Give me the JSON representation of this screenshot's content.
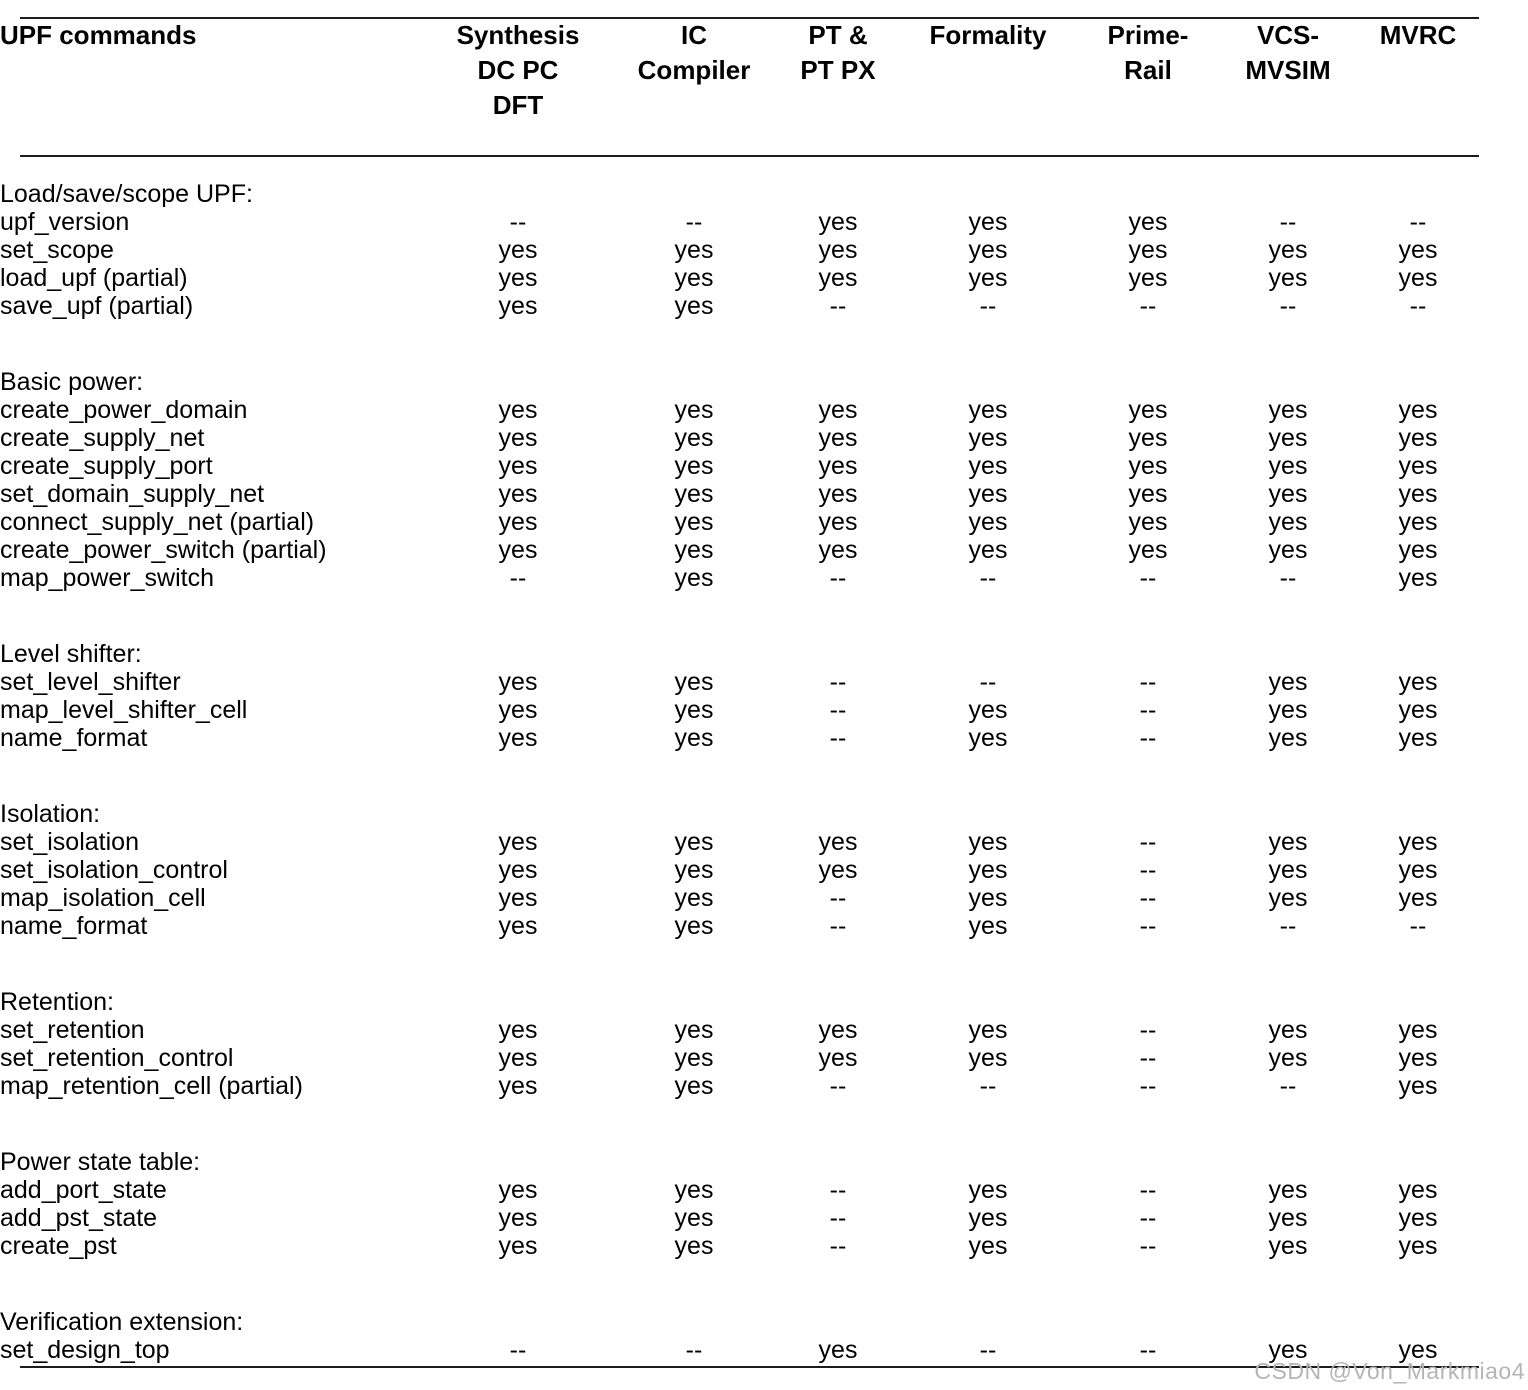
{
  "table": {
    "command_header": "UPF commands",
    "columns": [
      {
        "label_lines": [
          "Synthesis",
          "DC PC",
          "DFT"
        ]
      },
      {
        "label_lines": [
          "IC",
          "Compiler"
        ]
      },
      {
        "label_lines": [
          "PT &",
          "PT PX"
        ]
      },
      {
        "label_lines": [
          "Formality"
        ]
      },
      {
        "label_lines": [
          "Prime-",
          "Rail"
        ]
      },
      {
        "label_lines": [
          "VCS-",
          "MVSIM"
        ]
      },
      {
        "label_lines": [
          "MVRC"
        ]
      }
    ],
    "sections": [
      {
        "title": "Load/save/scope UPF:",
        "rows": [
          {
            "command": "upf_version",
            "values": [
              "--",
              "--",
              "yes",
              "yes",
              "yes",
              "--",
              "--"
            ]
          },
          {
            "command": "set_scope",
            "values": [
              "yes",
              "yes",
              "yes",
              "yes",
              "yes",
              "yes",
              "yes"
            ]
          },
          {
            "command": "load_upf (partial)",
            "values": [
              "yes",
              "yes",
              "yes",
              "yes",
              "yes",
              "yes",
              "yes"
            ]
          },
          {
            "command": "save_upf (partial)",
            "values": [
              "yes",
              "yes",
              "--",
              "--",
              "--",
              "--",
              "--"
            ]
          }
        ]
      },
      {
        "title": "Basic power:",
        "rows": [
          {
            "command": "create_power_domain",
            "values": [
              "yes",
              "yes",
              "yes",
              "yes",
              "yes",
              "yes",
              "yes"
            ]
          },
          {
            "command": "create_supply_net",
            "values": [
              "yes",
              "yes",
              "yes",
              "yes",
              "yes",
              "yes",
              "yes"
            ]
          },
          {
            "command": "create_supply_port",
            "values": [
              "yes",
              "yes",
              "yes",
              "yes",
              "yes",
              "yes",
              "yes"
            ]
          },
          {
            "command": "set_domain_supply_net",
            "values": [
              "yes",
              "yes",
              "yes",
              "yes",
              "yes",
              "yes",
              "yes"
            ]
          },
          {
            "command": "connect_supply_net (partial)",
            "values": [
              "yes",
              "yes",
              "yes",
              "yes",
              "yes",
              "yes",
              "yes"
            ]
          },
          {
            "command": "create_power_switch (partial)",
            "values": [
              "yes",
              "yes",
              "yes",
              "yes",
              "yes",
              "yes",
              "yes"
            ]
          },
          {
            "command": "map_power_switch",
            "values": [
              "--",
              "yes",
              "--",
              "--",
              "--",
              "--",
              "yes"
            ]
          }
        ]
      },
      {
        "title": "Level shifter:",
        "rows": [
          {
            "command": "set_level_shifter",
            "values": [
              "yes",
              "yes",
              "--",
              "--",
              "--",
              "yes",
              "yes"
            ]
          },
          {
            "command": "map_level_shifter_cell",
            "values": [
              "yes",
              "yes",
              "--",
              "yes",
              "--",
              "yes",
              "yes"
            ]
          },
          {
            "command": "name_format",
            "values": [
              "yes",
              "yes",
              "--",
              "yes",
              "--",
              "yes",
              "yes"
            ]
          }
        ]
      },
      {
        "title": "Isolation:",
        "rows": [
          {
            "command": "set_isolation",
            "values": [
              "yes",
              "yes",
              "yes",
              "yes",
              "--",
              "yes",
              "yes"
            ]
          },
          {
            "command": "set_isolation_control",
            "values": [
              "yes",
              "yes",
              "yes",
              "yes",
              "--",
              "yes",
              "yes"
            ]
          },
          {
            "command": "map_isolation_cell",
            "values": [
              "yes",
              "yes",
              "--",
              "yes",
              "--",
              "yes",
              "yes"
            ]
          },
          {
            "command": "name_format",
            "values": [
              "yes",
              "yes",
              "--",
              "yes",
              "--",
              "--",
              "--"
            ]
          }
        ]
      },
      {
        "title": "Retention:",
        "rows": [
          {
            "command": "set_retention",
            "values": [
              "yes",
              "yes",
              "yes",
              "yes",
              "--",
              "yes",
              "yes"
            ]
          },
          {
            "command": "set_retention_control",
            "values": [
              "yes",
              "yes",
              "yes",
              "yes",
              "--",
              "yes",
              "yes"
            ]
          },
          {
            "command": "map_retention_cell (partial)",
            "values": [
              "yes",
              "yes",
              "--",
              "--",
              "--",
              "--",
              "yes"
            ]
          }
        ]
      },
      {
        "title": "Power state table:",
        "rows": [
          {
            "command": "add_port_state",
            "values": [
              "yes",
              "yes",
              "--",
              "yes",
              "--",
              "yes",
              "yes"
            ]
          },
          {
            "command": "add_pst_state",
            "values": [
              "yes",
              "yes",
              "--",
              "yes",
              "--",
              "yes",
              "yes"
            ],
            "emphasis": true
          },
          {
            "command": "create_pst",
            "values": [
              "yes",
              "yes",
              "--",
              "yes",
              "--",
              "yes",
              "yes"
            ]
          }
        ]
      },
      {
        "title": "Verification extension:",
        "rows": [
          {
            "command": "set_design_top",
            "values": [
              "--",
              "--",
              "yes",
              "--",
              "--",
              "yes",
              "yes"
            ],
            "emphasis": true
          }
        ]
      }
    ]
  },
  "watermark": "CSDN @Von_Markmiao4",
  "colors": {
    "text": "#000000",
    "rule": "#1c1c1c",
    "watermark": "#b5b5b5",
    "background": "#ffffff"
  }
}
